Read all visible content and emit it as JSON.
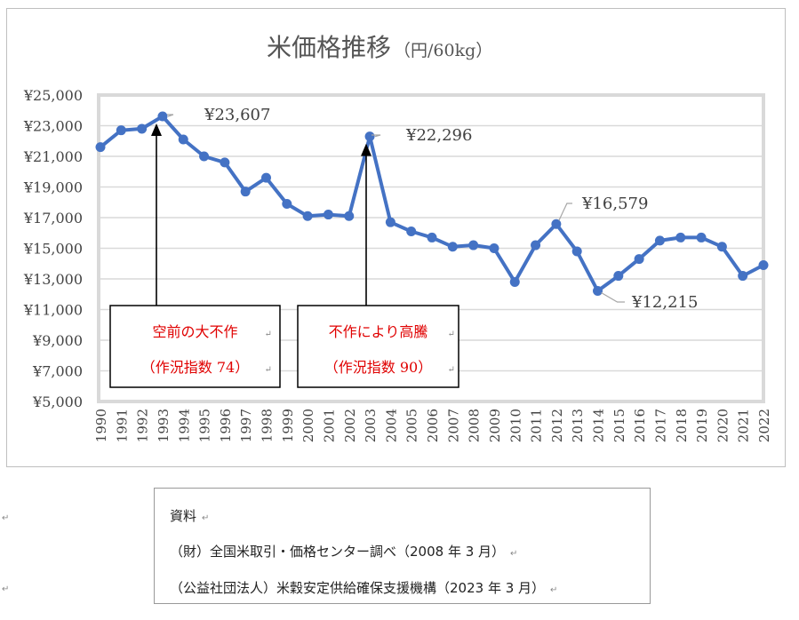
{
  "chart_data": {
    "type": "line",
    "title": "米価格推移",
    "title_unit": "（円/60kg）",
    "x": [
      "1990",
      "1991",
      "1992",
      "1993",
      "1994",
      "1995",
      "1996",
      "1997",
      "1998",
      "1999",
      "2000",
      "2001",
      "2002",
      "2003",
      "2004",
      "2005",
      "2006",
      "2007",
      "2008",
      "2009",
      "2010",
      "2011",
      "2012",
      "2013",
      "2014",
      "2015",
      "2016",
      "2017",
      "2018",
      "2019",
      "2020",
      "2021",
      "2022"
    ],
    "values": [
      21600,
      22700,
      22800,
      23607,
      22100,
      21000,
      20600,
      18700,
      19600,
      17900,
      17100,
      17200,
      17100,
      22296,
      16700,
      16100,
      15700,
      15100,
      15200,
      15000,
      12800,
      15200,
      16579,
      14800,
      12215,
      13200,
      14300,
      15500,
      15700,
      15700,
      15100,
      13200,
      13900
    ],
    "ylim": [
      5000,
      25000
    ],
    "y_ticks": [
      "¥5,000",
      "¥7,000",
      "¥9,000",
      "¥11,000",
      "¥13,000",
      "¥15,000",
      "¥17,000",
      "¥19,000",
      "¥21,000",
      "¥23,000",
      "¥25,000"
    ],
    "grid": true,
    "line_color": "#4472c4",
    "data_labels": [
      {
        "label": "¥23,607",
        "year": "1993"
      },
      {
        "label": "¥22,296",
        "year": "2003"
      },
      {
        "label": "¥16,579",
        "year": "2012"
      },
      {
        "label": "¥12,215",
        "year": "2014"
      }
    ],
    "callouts": [
      {
        "line1": "空前の大不作",
        "line2": "（作況指数 74）",
        "year": "1993"
      },
      {
        "line1": "不作により高騰",
        "line2": "（作況指数 90）",
        "year": "2003"
      }
    ]
  },
  "source_box": {
    "heading": "資料",
    "line1": "（財）全国米取引・価格センター調べ（2008 年 3 月）",
    "line2": "（公益社団法人）米穀安定供給確保支援機構（2023 年 3 月）"
  },
  "paragraph_mark": "↵"
}
